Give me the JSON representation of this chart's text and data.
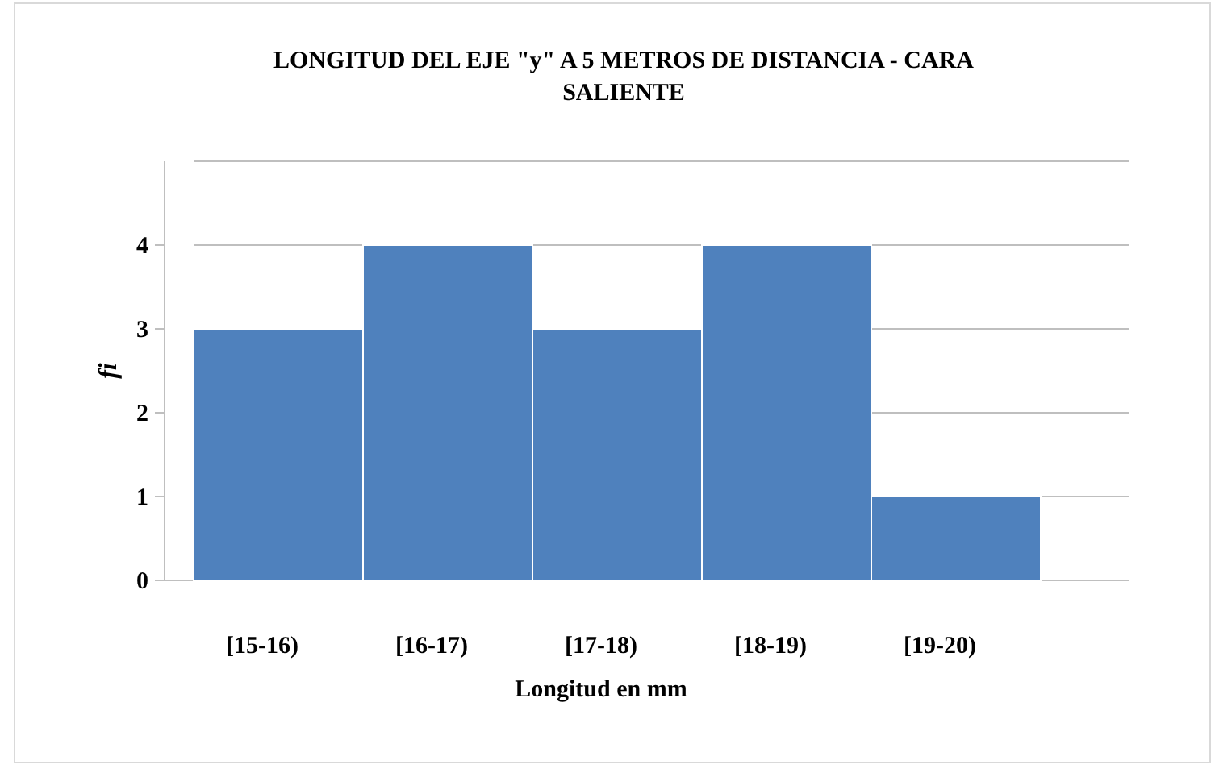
{
  "chart_data": {
    "type": "bar",
    "title": "LONGITUD DEL EJE \"y\" A 5 METROS DE DISTANCIA - CARA SALIENTE",
    "xlabel": "Longitud en mm",
    "ylabel": "fi",
    "categories": [
      "[15-16)",
      "[16-17)",
      "[17-18)",
      "[18-19)",
      "[19-20)"
    ],
    "values": [
      3,
      4,
      3,
      4,
      1
    ],
    "color": "#4f81bd",
    "ylim": [
      0,
      5
    ],
    "yticks": [
      0,
      1,
      2,
      3,
      4
    ],
    "grid": "y"
  }
}
